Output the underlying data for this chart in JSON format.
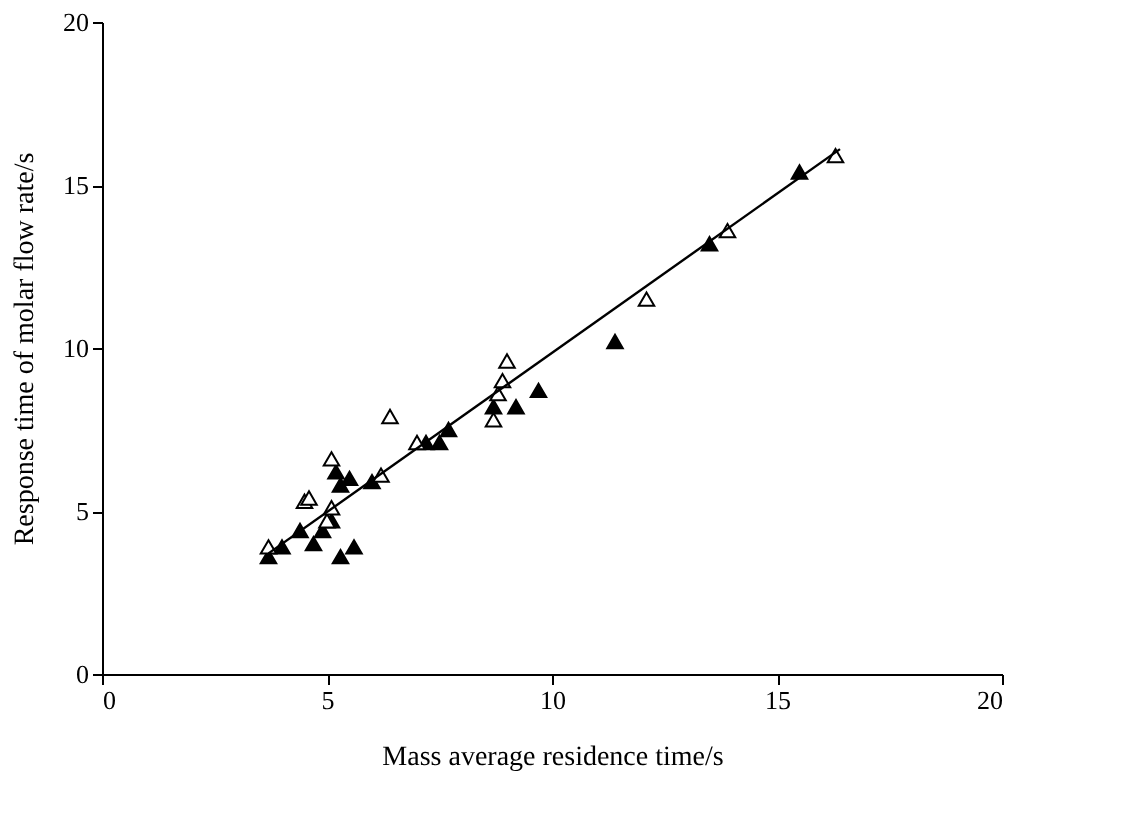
{
  "chart_data": {
    "type": "scatter",
    "xlabel": "Mass average residence time/s",
    "ylabel": "Response time of molar flow rate/s",
    "xlim": [
      0,
      20
    ],
    "ylim": [
      0,
      20
    ],
    "xticks": [
      0,
      5,
      10,
      15,
      20
    ],
    "yticks": [
      0,
      5,
      10,
      15,
      20
    ],
    "grid": false,
    "legend": false,
    "marker": "triangle",
    "series": [
      {
        "color": "#000000",
        "x": [
          3.7,
          4.0,
          4.4,
          4.7,
          4.9,
          5.1,
          5.2,
          5.3,
          5.5,
          5.3,
          5.6,
          6.0,
          7.2,
          7.5,
          7.7,
          8.7,
          9.2,
          9.7,
          11.4,
          13.5,
          15.5
        ],
        "values": [
          3.6,
          3.9,
          4.4,
          4.0,
          4.4,
          4.7,
          6.2,
          5.8,
          6.0,
          3.6,
          3.9,
          5.9,
          7.1,
          7.1,
          7.5,
          8.2,
          8.2,
          8.7,
          10.2,
          13.2,
          15.4
        ]
      },
      {
        "color": "#ffffff",
        "x": [
          3.7,
          4.5,
          4.6,
          5.1,
          5.0,
          5.1,
          6.2,
          6.4,
          7.0,
          8.7,
          8.8,
          8.9,
          9.0,
          12.1,
          13.9,
          16.3
        ],
        "values": [
          3.9,
          5.3,
          5.4,
          6.6,
          4.7,
          5.1,
          6.1,
          7.9,
          7.1,
          7.8,
          8.6,
          9.0,
          9.6,
          11.5,
          13.6,
          15.9
        ]
      },
      {
        "type": "line",
        "marker": "none",
        "color": "#000000",
        "x": [
          3.7,
          16.4
        ],
        "values": [
          3.7,
          16.1
        ]
      }
    ]
  }
}
